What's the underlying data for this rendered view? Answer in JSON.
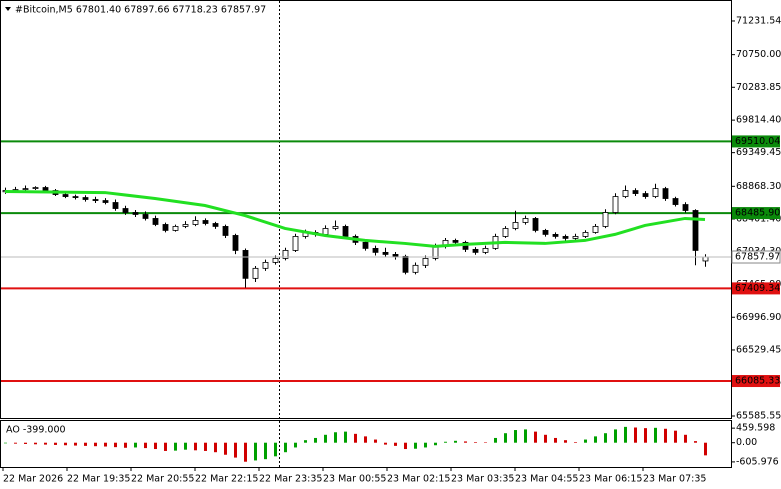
{
  "chart_data": {
    "type": "candlestick",
    "title": "#Bitcoin,M5  67801.40 67897.66 67718.23 67857.97",
    "open": [
      68790,
      68808,
      68822,
      68836,
      68851,
      68808,
      68751,
      68722,
      68708,
      68680,
      68665,
      68637,
      68551,
      68494,
      68466,
      68409,
      68323,
      68238,
      68295,
      68323,
      68380,
      68337,
      68295,
      68166,
      67952,
      67553,
      67696,
      67781,
      67838,
      67952,
      68152,
      68209,
      68181,
      68266,
      68295,
      68152,
      68067,
      67981,
      67924,
      67895,
      67867,
      67639,
      67739,
      67838,
      68010,
      68095,
      68067,
      67967,
      67924,
      67981,
      68152,
      68266,
      68352,
      68409,
      68238,
      68181,
      68152,
      68124,
      68152,
      68209,
      68295,
      68494,
      68722,
      68808,
      68765,
      68722,
      68836,
      68694,
      68608,
      68523,
      67801.4
    ],
    "high": [
      68850,
      68860,
      68880,
      68870,
      68875,
      68830,
      68780,
      68750,
      68740,
      68720,
      68700,
      68680,
      68590,
      68530,
      68510,
      68450,
      68350,
      68320,
      68370,
      68440,
      68410,
      68360,
      68320,
      68190,
      67980,
      67730,
      67820,
      67880,
      67990,
      68190,
      68250,
      68240,
      68310,
      68380,
      68320,
      68180,
      68100,
      68020,
      67990,
      67930,
      67890,
      67780,
      67880,
      68050,
      68130,
      68120,
      68090,
      68000,
      68020,
      68190,
      68300,
      68520,
      68450,
      68430,
      68260,
      68210,
      68180,
      68190,
      68240,
      68330,
      68540,
      68770,
      68880,
      68840,
      68800,
      68905,
      68860,
      68720,
      68640,
      68540,
      67897.66
    ],
    "low": [
      68760,
      68790,
      68800,
      68815,
      68790,
      68730,
      68700,
      68680,
      68650,
      68630,
      68610,
      68520,
      68460,
      68430,
      68380,
      68300,
      68210,
      68220,
      68270,
      68300,
      68310,
      68260,
      68130,
      67900,
      67420,
      67500,
      67660,
      67750,
      67810,
      67930,
      68120,
      68150,
      68160,
      68240,
      68120,
      68030,
      67950,
      67880,
      67860,
      67820,
      67610,
      67610,
      67700,
      67810,
      67980,
      68040,
      67930,
      67890,
      67900,
      67960,
      68130,
      68240,
      68320,
      68210,
      68150,
      68120,
      68090,
      68100,
      68130,
      68190,
      68270,
      68470,
      68700,
      68730,
      68690,
      68700,
      68660,
      68580,
      68490,
      67740,
      67718.23
    ],
    "close": [
      68808,
      68822,
      68836,
      68851,
      68808,
      68751,
      68722,
      68708,
      68680,
      68665,
      68637,
      68551,
      68494,
      68466,
      68409,
      68323,
      68238,
      68295,
      68323,
      68380,
      68337,
      68295,
      68166,
      67952,
      67553,
      67696,
      67781,
      67838,
      67952,
      68152,
      68209,
      68181,
      68266,
      68295,
      68152,
      68067,
      67981,
      67924,
      67895,
      67867,
      67639,
      67739,
      67838,
      68010,
      68095,
      68067,
      67967,
      67924,
      67981,
      68152,
      68266,
      68352,
      68409,
      68238,
      68181,
      68152,
      68124,
      68152,
      68209,
      68295,
      68494,
      68722,
      68808,
      68765,
      68722,
      68836,
      68694,
      68608,
      68523,
      67952,
      67857.97
    ],
    "up_color": "#ffffff",
    "down_color": "#000000",
    "ylim": [
      65557,
      71517
    ],
    "yticks": [
      71231.54,
      {
        "value": 70750,
        "label": "70750.00"
      },
      70283.85,
      {
        "value": 69814.4,
        "label": "69814.40"
      },
      69349.45,
      {
        "value": 68868.3,
        "label": "68868.30"
      },
      {
        "value": 68401.4,
        "label": "68401.40"
      },
      {
        "value": 67934.3,
        "label": "67934.30"
      },
      {
        "value": 67465.9,
        "label": "67465.90"
      },
      {
        "value": 66996.9,
        "label": "66996.90"
      },
      66529.45,
      66060.85,
      65585.55
    ],
    "ma": {
      "color": "#22e022",
      "x": [
        0,
        10,
        15,
        20,
        24,
        28,
        32,
        36,
        40,
        43,
        46,
        50,
        54,
        58,
        61,
        64,
        68,
        70
      ],
      "values": [
        68794,
        68779,
        68694,
        68594,
        68451,
        68266,
        68166,
        68095,
        68052,
        68010,
        68038,
        68067,
        68052,
        68095,
        68181,
        68309,
        68409,
        68394
      ]
    },
    "levels": [
      {
        "value": 69510.04,
        "color": "#0a8a0a"
      },
      {
        "value": 68485.9,
        "label": "68485.90",
        "color": "#0a8a0a"
      },
      {
        "value": 67409.34,
        "color": "#e01010"
      },
      {
        "value": 66085.33,
        "color": "#e01010"
      }
    ],
    "xtick_labels": [
      "22 Mar 2026",
      "22 Mar 19:35",
      "22 Mar 20:55",
      "22 Mar 22:15",
      "22 Mar 23:35",
      "23 Mar 00:55",
      "23 Mar 02:15",
      "23 Mar 03:35",
      "23 Mar 04:55",
      "23 Mar 06:15",
      "23 Mar 07:35"
    ],
    "indicator": {
      "type": "bar",
      "title": "AO -399.000",
      "values": [
        -20,
        -30,
        -40,
        -50,
        -60,
        -70,
        -80,
        -90,
        -100,
        -110,
        -120,
        -140,
        -160,
        -150,
        -170,
        -200,
        -260,
        -250,
        -220,
        -240,
        -260,
        -300,
        -380,
        -470,
        -600,
        -560,
        -520,
        -430,
        -300,
        -150,
        80,
        150,
        250,
        330,
        350,
        280,
        200,
        100,
        -60,
        -100,
        -200,
        -190,
        -150,
        -80,
        30,
        60,
        40,
        20,
        10,
        150,
        300,
        400,
        420,
        350,
        250,
        150,
        80,
        20,
        100,
        200,
        300,
        420,
        500,
        480,
        460,
        470,
        440,
        380,
        250,
        50,
        -399
      ],
      "up_color": "#00a000",
      "down_color": "#d00000",
      "ylim": [
        -767,
        717
      ],
      "yticks": [
        459.598,
        {
          "value": 0,
          "label": "0.00"
        },
        -605.976
      ]
    }
  }
}
